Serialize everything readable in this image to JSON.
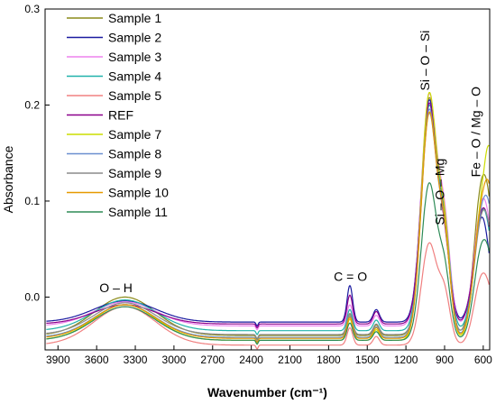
{
  "chart_data": {
    "type": "line",
    "xlabel": "Wavenumber (cm⁻¹)",
    "ylabel": "Absorbance",
    "x_reversed": true,
    "xlim": [
      4000,
      550
    ],
    "ylim": [
      -0.055,
      0.3
    ],
    "x_ticks": [
      "3900",
      "3600",
      "3300",
      "3000",
      "2700",
      "2400",
      "2100",
      "1800",
      "1500",
      "1200",
      "900",
      "600"
    ],
    "x_tick_values": [
      3900,
      3600,
      3300,
      3000,
      2700,
      2400,
      2100,
      1800,
      1500,
      1200,
      900,
      600
    ],
    "y_ticks": [
      "0.0",
      "0.1",
      "0.2",
      "0.3"
    ],
    "y_tick_values": [
      0.0,
      0.1,
      0.2,
      0.3
    ],
    "legend_position": "top-left",
    "annotations": [
      {
        "text": "O – H",
        "x": 3450,
        "y": 0.005,
        "rotate": false
      },
      {
        "text": "C = O",
        "x": 1630,
        "y": 0.017,
        "rotate": false
      },
      {
        "text": "Si – O – Si",
        "x": 1020,
        "y": 0.215,
        "rotate": true
      },
      {
        "text": "Si – O – Mg",
        "x": 905,
        "y": 0.075,
        "rotate": true
      },
      {
        "text": "Fe – O / Mg – O",
        "x": 625,
        "y": 0.125,
        "rotate": true
      }
    ],
    "series": [
      {
        "name": "Sample 1",
        "color": "#8b8b1a",
        "offset": -0.04,
        "oh": 0.04,
        "co": 0.022,
        "co2": 0.011,
        "sio": 0.245,
        "sid": 0.168,
        "fe": 0.198,
        "end": 0.205
      },
      {
        "name": "Sample 2",
        "color": "#1a1aa0",
        "offset": -0.026,
        "oh": 0.022,
        "co": 0.038,
        "co2": 0.013,
        "sio": 0.229,
        "sid": 0.15,
        "fe": 0.14,
        "end": 0.108
      },
      {
        "name": "Sample 3",
        "color": "#ee82ee",
        "offset": -0.03,
        "oh": 0.025,
        "co": 0.022,
        "co2": 0.011,
        "sio": 0.239,
        "sid": 0.177,
        "fe": 0.16,
        "end": 0.158
      },
      {
        "name": "Sample 4",
        "color": "#20b2aa",
        "offset": -0.035,
        "oh": 0.032,
        "co": 0.022,
        "co2": 0.011,
        "sio": 0.232,
        "sid": 0.174,
        "fe": 0.153,
        "end": 0.15
      },
      {
        "name": "Sample 5",
        "color": "#f08080",
        "offset": -0.05,
        "oh": 0.04,
        "co": 0.018,
        "co2": 0.009,
        "sio": 0.105,
        "sid": 0.09,
        "fe": 0.09,
        "end": 0.09
      },
      {
        "name": "REF",
        "color": "#8b008b",
        "offset": -0.028,
        "oh": 0.02,
        "co": 0.03,
        "co2": 0.013,
        "sio": 0.228,
        "sid": 0.135,
        "fe": 0.145,
        "end": 0.145
      },
      {
        "name": "Sample 7",
        "color": "#ccdd00",
        "offset": -0.045,
        "oh": 0.037,
        "co": 0.022,
        "co2": 0.011,
        "sio": 0.255,
        "sid": 0.188,
        "fe": 0.172,
        "end": 0.26
      },
      {
        "name": "Sample 8",
        "color": "#6a8fd0",
        "offset": -0.042,
        "oh": 0.034,
        "co": 0.022,
        "co2": 0.011,
        "sio": 0.235,
        "sid": 0.17,
        "fe": 0.162,
        "end": 0.19
      },
      {
        "name": "Sample 9",
        "color": "#8c8c8c",
        "offset": -0.039,
        "oh": 0.033,
        "co": 0.022,
        "co2": 0.011,
        "sio": 0.228,
        "sid": 0.16,
        "fe": 0.152,
        "end": 0.16
      },
      {
        "name": "Sample 10",
        "color": "#e69900",
        "offset": -0.043,
        "oh": 0.035,
        "co": 0.022,
        "co2": 0.011,
        "sio": 0.233,
        "sid": 0.17,
        "fe": 0.168,
        "end": 0.215
      },
      {
        "name": "Sample 11",
        "color": "#2e8b57",
        "offset": -0.045,
        "oh": 0.035,
        "co": 0.018,
        "co2": 0.009,
        "sio": 0.162,
        "sid": 0.12,
        "fe": 0.122,
        "end": 0.13
      }
    ]
  }
}
